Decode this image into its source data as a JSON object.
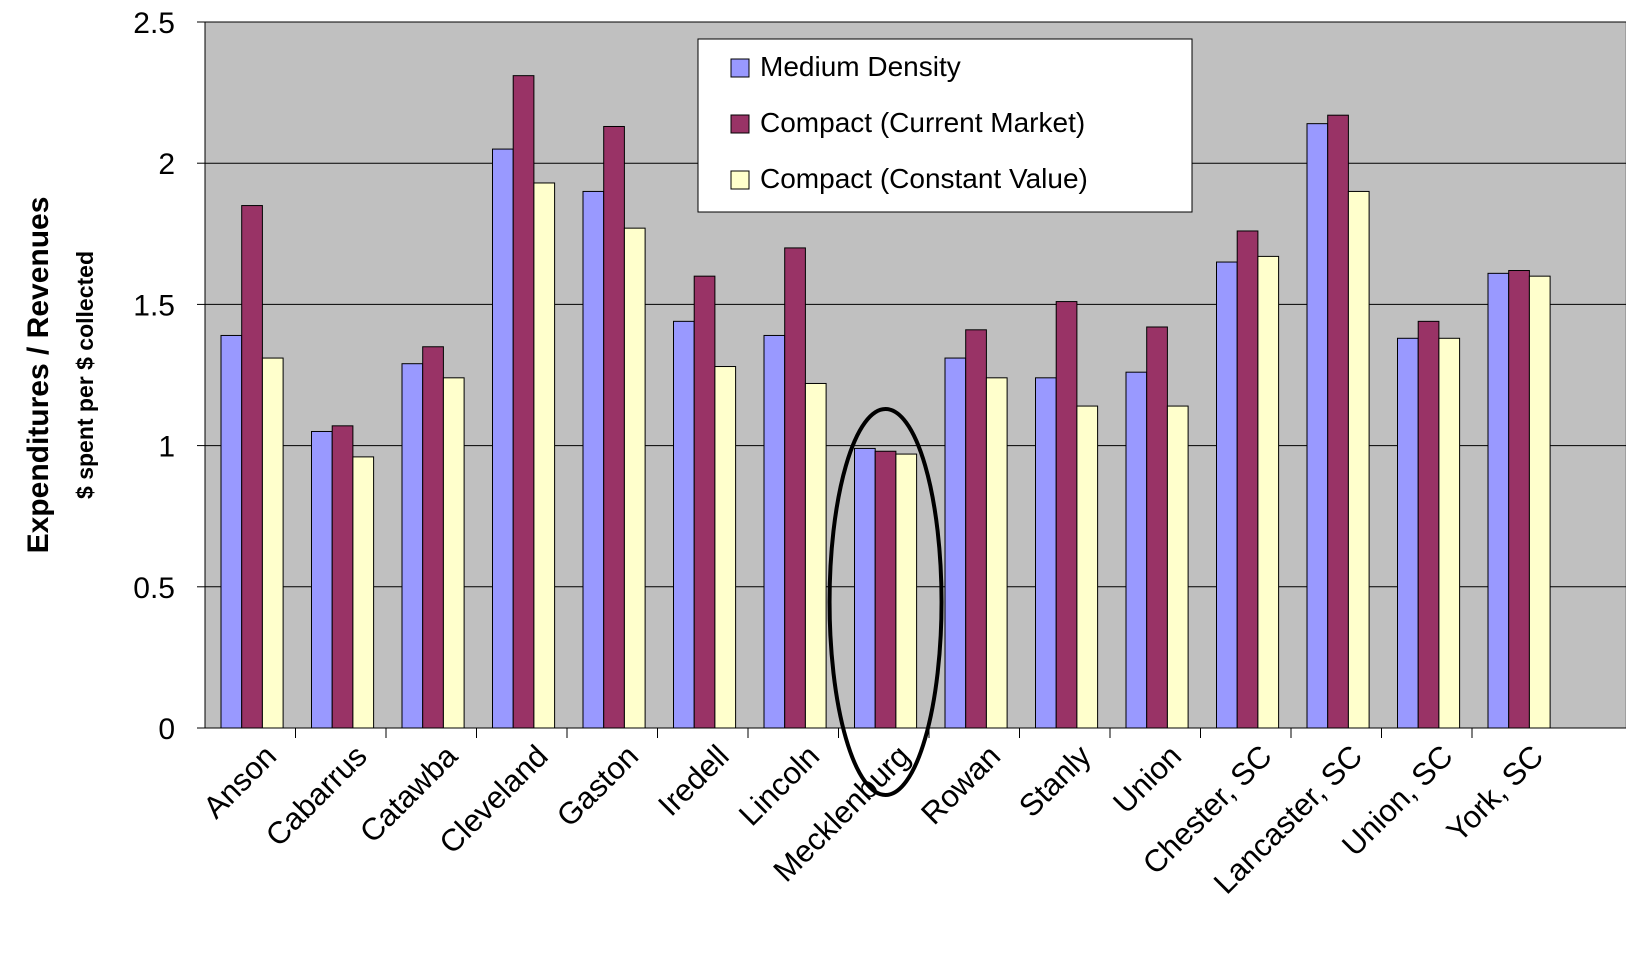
{
  "chart_data": {
    "type": "bar",
    "title": "",
    "xlabel": "",
    "ylabel": "Expenditures / Revenues",
    "ysublabel": "$ spent per $ collected",
    "ylim": [
      0,
      2.5
    ],
    "yticks": [
      0,
      0.5,
      1,
      1.5,
      2,
      2.5
    ],
    "ytick_labels": [
      "0",
      "0.5",
      "1",
      "1.5",
      "2",
      "2.5"
    ],
    "grid": true,
    "legend_position": "top-center",
    "categories": [
      "Anson",
      "Cabarrus",
      "Catawba",
      "Cleveland",
      "Gaston",
      "Iredell",
      "Lincoln",
      "Mecklenburg",
      "Rowan",
      "Stanly",
      "Union",
      "Chester, SC",
      "Lancaster, SC",
      "Union, SC",
      "York, SC"
    ],
    "series": [
      {
        "name": "Medium Density",
        "color": "#9999ff",
        "values": [
          1.39,
          1.05,
          1.29,
          2.05,
          1.9,
          1.44,
          1.39,
          0.99,
          1.31,
          1.24,
          1.26,
          1.65,
          2.14,
          1.38,
          1.61
        ]
      },
      {
        "name": "Compact (Current Market)",
        "color": "#993366",
        "values": [
          1.85,
          1.07,
          1.35,
          2.31,
          2.13,
          1.6,
          1.7,
          0.98,
          1.41,
          1.51,
          1.42,
          1.76,
          2.17,
          1.44,
          1.62
        ]
      },
      {
        "name": "Compact (Constant Value)",
        "color": "#ffffcc",
        "values": [
          1.31,
          0.96,
          1.24,
          1.93,
          1.77,
          1.28,
          1.22,
          0.97,
          1.24,
          1.14,
          1.14,
          1.67,
          1.9,
          1.38,
          1.6
        ]
      }
    ],
    "highlighted_category": "Mecklenburg",
    "plot_background": "#c0c0c0"
  }
}
